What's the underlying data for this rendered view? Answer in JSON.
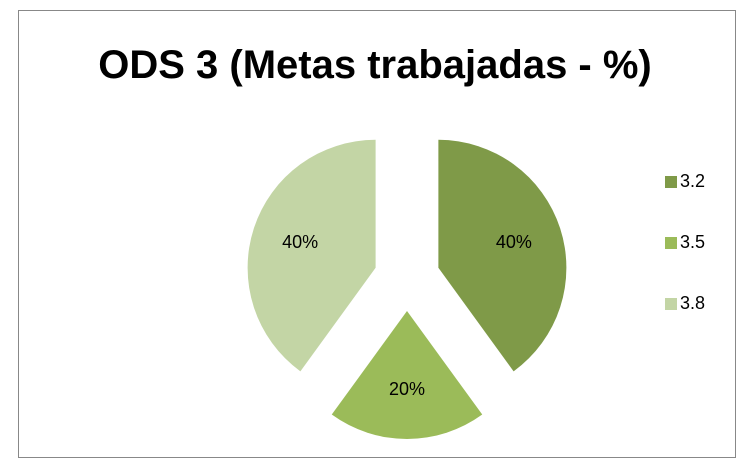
{
  "chart_data": {
    "type": "pie",
    "title": "ODS 3 (Metas trabajadas - %)",
    "categories": [
      "3.2",
      "3.5",
      "3.8"
    ],
    "values": [
      40,
      20,
      40
    ],
    "value_labels": [
      "40%",
      "20%",
      "40%"
    ],
    "colors": [
      "#7f9a48",
      "#9bbb59",
      "#c3d5a5"
    ],
    "legend": "right"
  }
}
